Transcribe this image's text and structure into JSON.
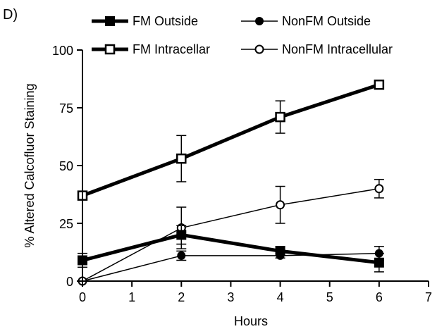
{
  "panel_label": "D)",
  "chart_data": {
    "type": "line",
    "xlabel": "Hours",
    "ylabel": "% Altered Calcofluor Staining",
    "xlim": [
      0,
      7
    ],
    "ylim": [
      0,
      100
    ],
    "x_ticks": [
      "0",
      "1",
      "2",
      "3",
      "4",
      "5",
      "6",
      "7"
    ],
    "y_ticks": [
      "0",
      "25",
      "50",
      "75",
      "100"
    ],
    "legend_position": "top",
    "series": [
      {
        "name": "FM Outside",
        "marker": "filled-square",
        "line": "thick",
        "x": [
          0,
          2,
          4,
          6
        ],
        "y": [
          9,
          20,
          13,
          8
        ],
        "error": [
          3,
          4,
          2,
          4
        ]
      },
      {
        "name": "NonFM Outside",
        "marker": "filled-circle",
        "line": "thin",
        "x": [
          0,
          2,
          4,
          6
        ],
        "y": [
          0,
          11,
          11,
          12
        ],
        "error": [
          0,
          2,
          1,
          3
        ]
      },
      {
        "name": "FM Intracellar",
        "marker": "open-square",
        "line": "thick",
        "x": [
          0,
          2,
          4,
          6
        ],
        "y": [
          37,
          53,
          71,
          85
        ],
        "error": [
          1,
          10,
          7,
          1
        ]
      },
      {
        "name": "NonFM Intracellular",
        "marker": "open-circle",
        "line": "thin",
        "x": [
          0,
          2,
          4,
          6
        ],
        "y": [
          0,
          23,
          33,
          40
        ],
        "error": [
          0,
          9,
          8,
          4
        ]
      }
    ]
  }
}
